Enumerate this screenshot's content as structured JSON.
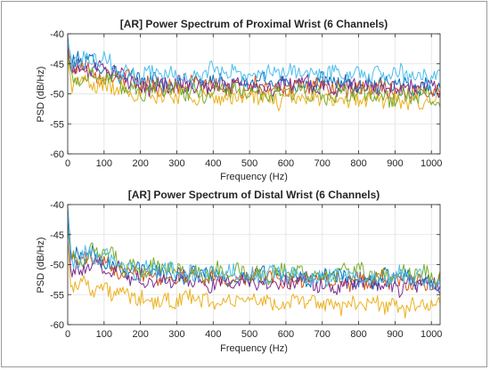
{
  "chart_data": [
    {
      "type": "line",
      "title": "[AR] Power Spectrum of Proximal Wrist (6 Channels)",
      "xlabel": "Frequency (Hz)",
      "ylabel": "PSD (dB/Hz)",
      "xlim": [
        0,
        1024
      ],
      "ylim": [
        -60,
        -40
      ],
      "xticks": [
        0,
        100,
        200,
        300,
        400,
        500,
        600,
        700,
        800,
        900,
        1000
      ],
      "xtick_labels": [
        "0",
        "100",
        "200",
        "300",
        "400",
        "500",
        "600",
        "700",
        "800",
        "900",
        "1000"
      ],
      "yticks": [
        -60,
        -55,
        -50,
        -45,
        -40
      ],
      "ytick_labels": [
        "-60",
        "-55",
        "-50",
        "-45",
        "-40"
      ],
      "grid": true,
      "legend": false,
      "series": [
        {
          "color": "#0072BD",
          "x": [
            0,
            10,
            30,
            60,
            100,
            150,
            200,
            300,
            400,
            500,
            600,
            700,
            800,
            900,
            1024
          ],
          "values": [
            -40.5,
            -45.5,
            -44.5,
            -45,
            -45.5,
            -47,
            -48,
            -48.3,
            -48.3,
            -48.2,
            -48,
            -48.3,
            -48.4,
            -48.5,
            -48.6
          ]
        },
        {
          "color": "#D95319",
          "x": [
            0,
            10,
            30,
            60,
            100,
            150,
            200,
            300,
            400,
            500,
            600,
            700,
            800,
            900,
            1024
          ],
          "values": [
            -42,
            -46,
            -45.5,
            -46,
            -46.5,
            -47.5,
            -48.5,
            -48.8,
            -48.8,
            -49,
            -48.8,
            -49,
            -49.2,
            -49.3,
            -49.5
          ]
        },
        {
          "color": "#EDB120",
          "x": [
            0,
            10,
            30,
            60,
            100,
            150,
            200,
            300,
            400,
            500,
            600,
            700,
            800,
            900,
            1024
          ],
          "values": [
            -44,
            -48.5,
            -48,
            -48,
            -48.5,
            -49.5,
            -50,
            -50.3,
            -50.5,
            -50.6,
            -50.8,
            -51,
            -51,
            -51.2,
            -51.5
          ]
        },
        {
          "color": "#7E2F8E",
          "x": [
            0,
            10,
            30,
            60,
            100,
            150,
            200,
            300,
            400,
            500,
            600,
            700,
            800,
            900,
            1024
          ],
          "values": [
            -42.5,
            -46.5,
            -45.5,
            -45.5,
            -46,
            -47.5,
            -48.5,
            -48.6,
            -48.5,
            -48.6,
            -48.5,
            -48.6,
            -48.7,
            -48.8,
            -49
          ]
        },
        {
          "color": "#77AC30",
          "x": [
            0,
            10,
            30,
            60,
            100,
            150,
            200,
            300,
            400,
            500,
            600,
            700,
            800,
            900,
            1024
          ],
          "values": [
            -43,
            -47.5,
            -47,
            -47,
            -47.5,
            -48.5,
            -49.2,
            -49.5,
            -49.6,
            -49.8,
            -50,
            -50.2,
            -50.3,
            -50.5,
            -50.8
          ]
        },
        {
          "color": "#4DBEEE",
          "x": [
            0,
            10,
            30,
            60,
            100,
            150,
            200,
            300,
            400,
            500,
            600,
            700,
            800,
            900,
            1024
          ],
          "values": [
            -41,
            -44.5,
            -44,
            -44.2,
            -44.5,
            -46,
            -46.8,
            -46.8,
            -46.6,
            -46.5,
            -46.5,
            -46.6,
            -46.7,
            -46.8,
            -47
          ]
        }
      ]
    },
    {
      "type": "line",
      "title": "[AR] Power Spectrum of Distal Wrist (6 Channels)",
      "xlabel": "Frequency (Hz)",
      "ylabel": "PSD (dB/Hz)",
      "xlim": [
        0,
        1024
      ],
      "ylim": [
        -60,
        -40
      ],
      "xticks": [
        0,
        100,
        200,
        300,
        400,
        500,
        600,
        700,
        800,
        900,
        1000
      ],
      "xtick_labels": [
        "0",
        "100",
        "200",
        "300",
        "400",
        "500",
        "600",
        "700",
        "800",
        "900",
        "1000"
      ],
      "yticks": [
        -60,
        -55,
        -50,
        -45,
        -40
      ],
      "ytick_labels": [
        "-60",
        "-55",
        "-50",
        "-45",
        "-40"
      ],
      "grid": true,
      "legend": false,
      "series": [
        {
          "color": "#0072BD",
          "x": [
            0,
            10,
            30,
            60,
            100,
            150,
            200,
            300,
            400,
            500,
            600,
            700,
            800,
            900,
            1024
          ],
          "values": [
            -40.5,
            -48.5,
            -49,
            -48.5,
            -49,
            -50.5,
            -51,
            -51.5,
            -51.8,
            -52,
            -52,
            -52.2,
            -52.3,
            -52.4,
            -52.6
          ]
        },
        {
          "color": "#D95319",
          "x": [
            0,
            10,
            30,
            60,
            100,
            150,
            200,
            300,
            400,
            500,
            600,
            700,
            800,
            900,
            1024
          ],
          "values": [
            -42,
            -49.5,
            -49.5,
            -49,
            -49.5,
            -51,
            -51.5,
            -52,
            -52.2,
            -52.3,
            -52.4,
            -52.5,
            -52.6,
            -52.8,
            -53
          ]
        },
        {
          "color": "#EDB120",
          "x": [
            0,
            10,
            30,
            60,
            100,
            150,
            200,
            300,
            400,
            500,
            600,
            700,
            800,
            900,
            1024
          ],
          "values": [
            -46,
            -54,
            -53,
            -53,
            -54,
            -55.5,
            -55.8,
            -56,
            -56,
            -56.2,
            -56.3,
            -56.5,
            -56.6,
            -56.8,
            -57
          ]
        },
        {
          "color": "#7E2F8E",
          "x": [
            0,
            10,
            30,
            60,
            100,
            150,
            200,
            300,
            400,
            500,
            600,
            700,
            800,
            900,
            1024
          ],
          "values": [
            -43,
            -51,
            -51,
            -50,
            -50.5,
            -51.5,
            -52.2,
            -52.5,
            -52.8,
            -53,
            -53,
            -53.2,
            -53.3,
            -53.4,
            -53.5
          ]
        },
        {
          "color": "#77AC30",
          "x": [
            0,
            10,
            30,
            60,
            100,
            150,
            200,
            300,
            400,
            500,
            600,
            700,
            800,
            900,
            1024
          ],
          "values": [
            -44,
            -49,
            -48.5,
            -48,
            -48.5,
            -50,
            -50.5,
            -51,
            -51.2,
            -51.3,
            -51.4,
            -51.5,
            -51.6,
            -51.7,
            -51.8
          ]
        },
        {
          "color": "#4DBEEE",
          "x": [
            0,
            10,
            30,
            60,
            100,
            150,
            200,
            300,
            400,
            500,
            600,
            700,
            800,
            900,
            1024
          ],
          "values": [
            -41,
            -49.5,
            -49,
            -48.5,
            -49,
            -50.5,
            -51,
            -51.3,
            -51.5,
            -51.6,
            -51.8,
            -51.9,
            -52,
            -52.1,
            -52.3
          ]
        }
      ]
    }
  ]
}
